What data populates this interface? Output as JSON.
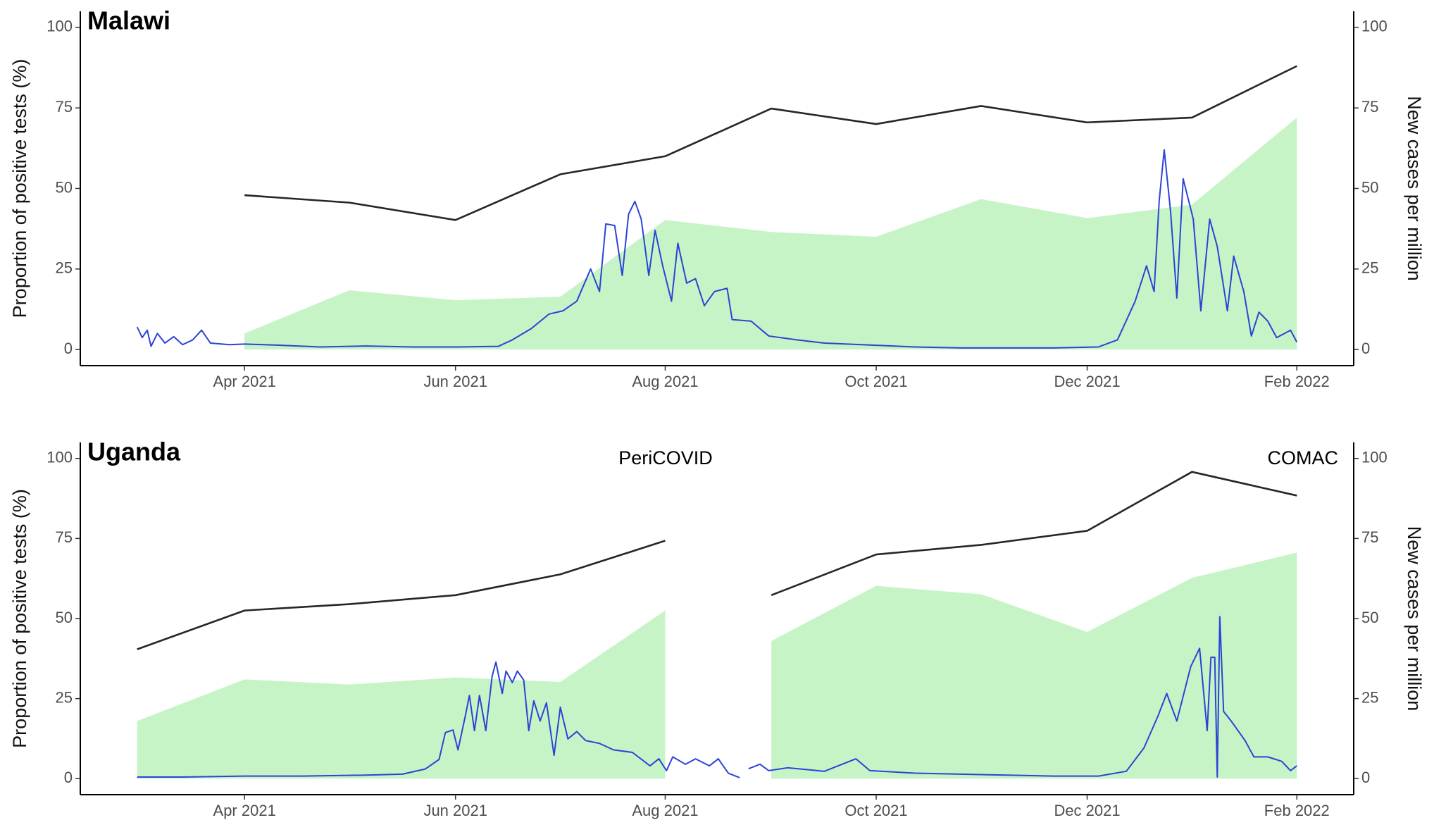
{
  "chart_data": [
    {
      "type": "line",
      "title": "Malawi",
      "y_label": "Proportion of positive tests (%)",
      "y2_label": "New cases per million",
      "xlim": [
        2021.12,
        2022.128
      ],
      "xticks": [
        {
          "value": 2021.25,
          "label": "Apr 2021"
        },
        {
          "value": 2021.417,
          "label": "Jun 2021"
        },
        {
          "value": 2021.583,
          "label": "Aug 2021"
        },
        {
          "value": 2021.75,
          "label": "Oct 2021"
        },
        {
          "value": 2021.917,
          "label": "Dec 2021"
        },
        {
          "value": 2022.083,
          "label": "Feb 2022"
        }
      ],
      "ylim": [
        -5,
        105
      ],
      "yticks": [
        0,
        25,
        50,
        75,
        100
      ],
      "y2lim": [
        -5,
        105
      ],
      "y2ticks": [
        0,
        25,
        50,
        75,
        100
      ],
      "series": [
        {
          "type": "area",
          "color": "#c6f4c6",
          "x": [
            2021.25,
            2021.333,
            2021.417,
            2021.5,
            2021.583,
            2021.667,
            2021.75,
            2021.833,
            2021.917,
            2022,
            2022.083
          ],
          "values": [
            5,
            18.4,
            15.3,
            16.4,
            40.2,
            36.5,
            35,
            46.7,
            40.8,
            45,
            72
          ]
        },
        {
          "type": "line",
          "color": "#2b44d6",
          "axis": "y2",
          "x": [
            2021.165,
            2021.169,
            2021.173,
            2021.176,
            2021.181,
            2021.187,
            2021.194,
            2021.201,
            2021.209,
            2021.216,
            2021.223,
            2021.238,
            2021.25,
            2021.274,
            2021.31,
            2021.346,
            2021.383,
            2021.419,
            2021.451,
            2021.462,
            2021.477,
            2021.491,
            2021.502,
            2021.513,
            2021.524,
            2021.531,
            2021.536,
            2021.543,
            2021.549,
            2021.554,
            2021.559,
            2021.564,
            2021.57,
            2021.575,
            2021.581,
            2021.588,
            2021.593,
            2021.6,
            2021.607,
            2021.614,
            2021.622,
            2021.632,
            2021.636,
            2021.651,
            2021.665,
            2021.687,
            2021.709,
            2021.745,
            2021.781,
            2021.817,
            2021.854,
            2021.89,
            2021.926,
            2021.941,
            2021.955,
            2021.964,
            2021.97,
            2021.974,
            2021.978,
            2021.983,
            2021.988,
            2021.993,
            2022.001,
            2022.007,
            2022.014,
            2022.02,
            2022.028,
            2022.033,
            2022.041,
            2022.047,
            2022.053,
            2022.06,
            2022.067,
            2022.078,
            2022.083
          ],
          "values": [
            7,
            3.7,
            6,
            1,
            5,
            2,
            4,
            1.5,
            3,
            6,
            2,
            1.5,
            1.7,
            1.4,
            0.8,
            1.1,
            0.8,
            0.8,
            1,
            3,
            6.5,
            11,
            12,
            15,
            25,
            18,
            39,
            38.5,
            23,
            42,
            46,
            40.5,
            23,
            37,
            26,
            15,
            33,
            20.6,
            22,
            13.6,
            18,
            19,
            9.3,
            8.8,
            4.2,
            3,
            2,
            1.4,
            0.8,
            0.5,
            0.5,
            0.5,
            0.8,
            3,
            15,
            26,
            18,
            46,
            62,
            43,
            16,
            53,
            40.5,
            12,
            40.5,
            32,
            12,
            29,
            18,
            4.2,
            11.6,
            8.8,
            3.7,
            6,
            2.3
          ]
        },
        {
          "type": "line",
          "color": "#262626",
          "x": [
            2021.25,
            2021.333,
            2021.417,
            2021.5,
            2021.583,
            2021.667,
            2021.75,
            2021.833,
            2021.917,
            2022,
            2022.083
          ],
          "values": [
            47.9,
            45.6,
            40.2,
            54.4,
            60,
            74.8,
            70,
            75.6,
            70.5,
            72,
            88
          ]
        }
      ]
    },
    {
      "type": "line",
      "title": "Uganda",
      "y_label": "Proportion of positive tests (%)",
      "y2_label": "New cases per million",
      "annotations": [
        "PeriCOVID",
        "COMAC"
      ],
      "xlim": [
        2021.12,
        2022.128
      ],
      "xticks": [
        {
          "value": 2021.25,
          "label": "Apr 2021"
        },
        {
          "value": 2021.417,
          "label": "Jun 2021"
        },
        {
          "value": 2021.583,
          "label": "Aug 2021"
        },
        {
          "value": 2021.75,
          "label": "Oct 2021"
        },
        {
          "value": 2021.917,
          "label": "Dec 2021"
        },
        {
          "value": 2022.083,
          "label": "Feb 2022"
        }
      ],
      "ylim": [
        -5,
        105
      ],
      "yticks": [
        0,
        25,
        50,
        75,
        100
      ],
      "y2lim": [
        -5,
        105
      ],
      "y2ticks": [
        0,
        25,
        50,
        75,
        100
      ],
      "series": [
        {
          "type": "area",
          "color": "#c6f4c6",
          "x": [
            2021.165,
            2021.25,
            2021.333,
            2021.417,
            2021.5,
            2021.583,
            2021.625,
            2021.667,
            2021.75,
            2021.833,
            2021.917,
            2022,
            2022.083
          ],
          "values": [
            18,
            31,
            29.4,
            31.6,
            30.2,
            52.5,
            null,
            43,
            60.2,
            57.6,
            45.8,
            62.7,
            70.6
          ]
        },
        {
          "type": "line",
          "color": "#2b44d6",
          "axis": "y2",
          "x": [
            2021.165,
            2021.201,
            2021.25,
            2021.296,
            2021.346,
            2021.375,
            2021.393,
            2021.404,
            2021.409,
            2021.415,
            2021.419,
            2021.425,
            2021.428,
            2021.432,
            2021.436,
            2021.441,
            2021.446,
            2021.449,
            2021.454,
            2021.457,
            2021.462,
            2021.466,
            2021.471,
            2021.475,
            2021.479,
            2021.484,
            2021.489,
            2021.495,
            2021.5,
            2021.506,
            2021.513,
            2021.52,
            2021.531,
            2021.542,
            2021.557,
            2021.571,
            2021.578,
            2021.584,
            2021.589,
            2021.599,
            2021.607,
            2021.618,
            2021.625,
            2021.633,
            2021.642,
            2021.646,
            2021.649,
            2021.658,
            2021.665,
            2021.68,
            2021.709,
            2021.734,
            2021.745,
            2021.781,
            2021.817,
            2021.854,
            2021.89,
            2021.926,
            2021.948,
            2021.962,
            2021.973,
            2021.98,
            2021.988,
            2021.999,
            2022.006,
            2022.012,
            2022.015,
            2022.018,
            2022.02,
            2022.022,
            2022.025,
            2022.031,
            2022.042,
            2022.049,
            2022.06,
            2022.071,
            2022.078,
            2022.083
          ],
          "values": [
            0.5,
            0.5,
            0.8,
            0.8,
            1.1,
            1.4,
            3,
            6,
            14.4,
            15.2,
            9,
            20,
            26,
            15,
            26,
            15,
            32,
            36.4,
            26.6,
            33.6,
            30,
            33.6,
            30.8,
            15,
            24.3,
            18,
            23.7,
            7.3,
            22.3,
            12.4,
            14.7,
            11.9,
            11,
            9,
            8.2,
            4,
            6.2,
            2.5,
            6.8,
            4.5,
            6.2,
            4,
            6.2,
            1.7,
            0.3,
            null,
            3.1,
            4.5,
            2.5,
            3.4,
            2.3,
            6.2,
            2.5,
            1.7,
            1.4,
            1.1,
            0.8,
            0.8,
            2.3,
            9.6,
            19.5,
            26.6,
            18,
            35,
            40.7,
            15,
            37.9,
            37.9,
            0.5,
            50.6,
            21,
            18,
            11.9,
            6.8,
            6.8,
            5.4,
            2.5,
            4
          ]
        },
        {
          "type": "line",
          "color": "#262626",
          "x": [
            2021.165,
            2021.25,
            2021.333,
            2021.417,
            2021.5,
            2021.583,
            2021.625,
            2021.667,
            2021.75,
            2021.833,
            2021.917,
            2022,
            2022.083
          ],
          "values": [
            40.4,
            52.5,
            54.5,
            57.3,
            63.8,
            74.3,
            null,
            57.3,
            70,
            73,
            77.4,
            95.8,
            88.4
          ]
        }
      ]
    }
  ]
}
